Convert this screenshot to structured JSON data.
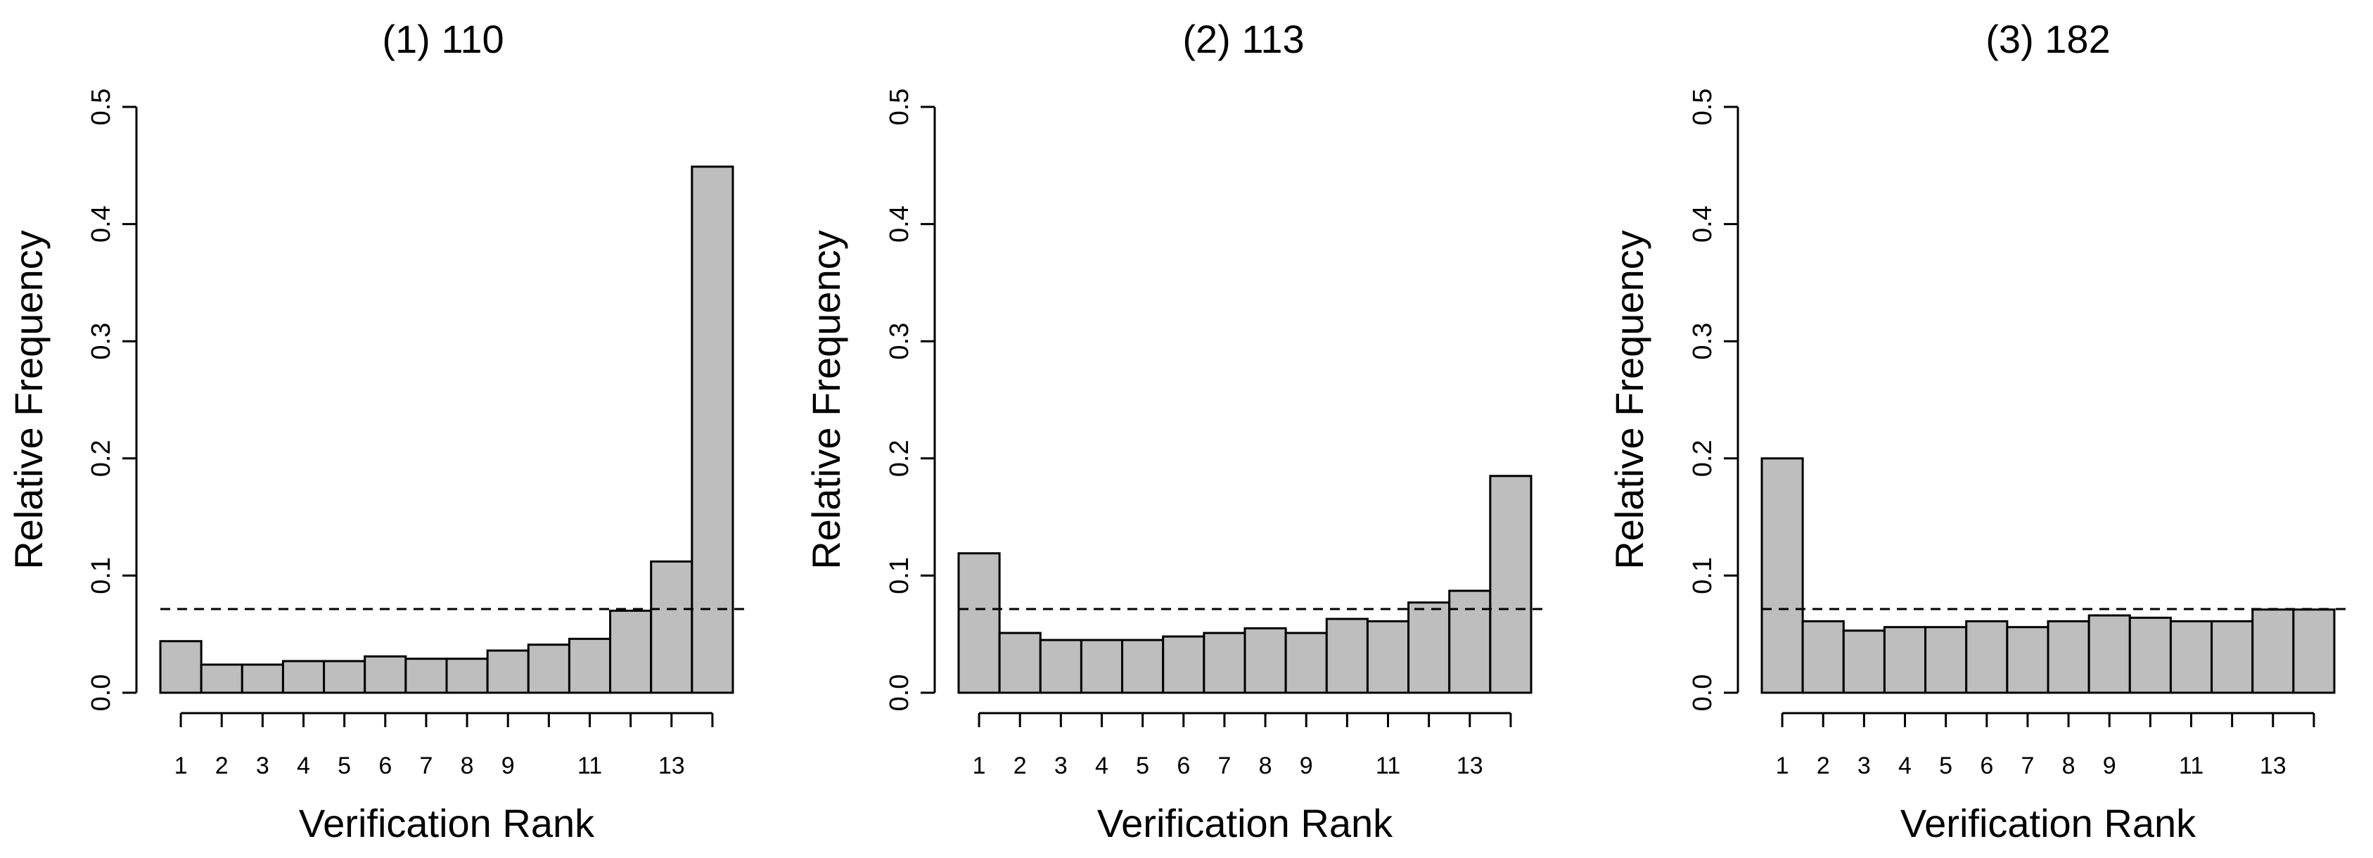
{
  "chart_data": [
    {
      "type": "bar",
      "title": "(1) 110",
      "xlabel": "Verification Rank",
      "ylabel": "Relative Frequency",
      "ylim": [
        0,
        0.5
      ],
      "yticks": [
        "0.0",
        "0.1",
        "0.2",
        "0.3",
        "0.4",
        "0.5"
      ],
      "categories": [
        1,
        2,
        3,
        4,
        5,
        6,
        7,
        8,
        9,
        10,
        11,
        12,
        13,
        14
      ],
      "xtick_labels": [
        "1",
        "2",
        "3",
        "4",
        "5",
        "6",
        "7",
        "8",
        "9",
        "11",
        "13"
      ],
      "values": [
        0.044,
        0.024,
        0.024,
        0.027,
        0.027,
        0.031,
        0.029,
        0.029,
        0.036,
        0.041,
        0.046,
        0.07,
        0.112,
        0.449
      ],
      "reference_line": 0.0714,
      "bar_color": "#bebebe"
    },
    {
      "type": "bar",
      "title": "(2) 113",
      "xlabel": "Verification Rank",
      "ylabel": "Relative Frequency",
      "ylim": [
        0,
        0.5
      ],
      "yticks": [
        "0.0",
        "0.1",
        "0.2",
        "0.3",
        "0.4",
        "0.5"
      ],
      "categories": [
        1,
        2,
        3,
        4,
        5,
        6,
        7,
        8,
        9,
        10,
        11,
        12,
        13,
        14
      ],
      "xtick_labels": [
        "1",
        "2",
        "3",
        "4",
        "5",
        "6",
        "7",
        "8",
        "9",
        "11",
        "13"
      ],
      "values": [
        0.119,
        0.051,
        0.045,
        0.045,
        0.045,
        0.048,
        0.051,
        0.055,
        0.051,
        0.063,
        0.061,
        0.077,
        0.087,
        0.185
      ],
      "reference_line": 0.0714,
      "bar_color": "#bebebe"
    },
    {
      "type": "bar",
      "title": "(3) 182",
      "xlabel": "Verification Rank",
      "ylabel": "Relative Frequency",
      "ylim": [
        0,
        0.5
      ],
      "yticks": [
        "0.0",
        "0.1",
        "0.2",
        "0.3",
        "0.4",
        "0.5"
      ],
      "categories": [
        1,
        2,
        3,
        4,
        5,
        6,
        7,
        8,
        9,
        10,
        11,
        12,
        13,
        14
      ],
      "xtick_labels": [
        "1",
        "2",
        "3",
        "4",
        "5",
        "6",
        "7",
        "8",
        "9",
        "11",
        "13"
      ],
      "values": [
        0.2,
        0.061,
        0.053,
        0.056,
        0.056,
        0.061,
        0.056,
        0.061,
        0.066,
        0.064,
        0.061,
        0.061,
        0.071,
        0.071
      ],
      "reference_line": 0.0714,
      "bar_color": "#bebebe"
    }
  ]
}
